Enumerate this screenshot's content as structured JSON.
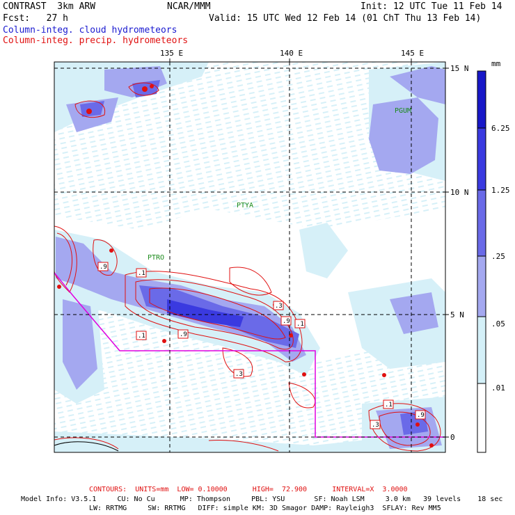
{
  "header": {
    "model": "CONTRAST  3km ARW",
    "center": "NCAR/MMM",
    "init": "Init: 12 UTC Tue 11 Feb 14",
    "fcst": "Fcst:   27 h",
    "valid": "Valid: 15 UTC Wed 12 Feb 14 (01 ChT Thu 13 Feb 14)",
    "field1": "Column-integ. cloud hydrometeors",
    "field2": "Column-integ. precip. hydrometeors"
  },
  "map": {
    "lon_labels": [
      "135 E",
      "140 E",
      "145 E"
    ],
    "lat_labels": [
      "15 N",
      "10 N",
      "5 N",
      "0"
    ],
    "stations": [
      "PGUM",
      "PTYA",
      "PTRO"
    ],
    "contour_labels": [
      ".1",
      ".9",
      ".1",
      ".9",
      ".3",
      ".9",
      ".1",
      ".3",
      ".1",
      ".3",
      ".9"
    ]
  },
  "colorbar": {
    "unit": "mm",
    "labels": [
      "6.25",
      "1.25",
      ".25",
      ".05",
      ".01"
    ],
    "colors": [
      "#1818c8",
      "#3a3ae0",
      "#6a6ae8",
      "#a4a8f0",
      "#d4f0f8",
      "#ffffff"
    ]
  },
  "footer": {
    "contours": "CONTOURS:  UNITS=mm  LOW= 0.10000      HIGH=  72.900      INTERVAL=X  3.0000",
    "model_info_1": "Model Info: V3.5.1     CU: No Cu      MP: Thompson     PBL: YSU       SF: Noah LSM     3.0 km   39 levels    18 sec",
    "model_info_2": "LW: RRTMG     SW: RRTMG   DIFF: simple KM: 3D Smagor DAMP: Rayleigh3  SFLAY: Rev MM5"
  },
  "colors": {
    "cloud_light": "#d6f0f8",
    "cloud_mid": "#a4a8f0",
    "cloud_strong": "#6a6ae8",
    "precip_contour": "#e01010",
    "domain_boundary": "#e000e0",
    "station": "#1a8a1a"
  }
}
